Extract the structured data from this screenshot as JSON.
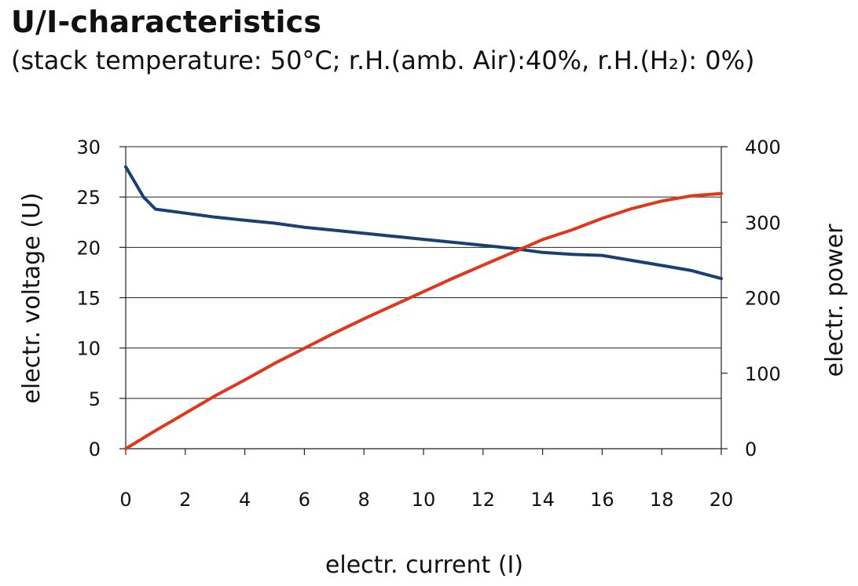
{
  "header": {
    "title": "U/I-characteristics",
    "subtitle": "(stack temperature: 50°C; r.H.(amb. Air):40%, r.H.(H₂): 0%)"
  },
  "chart_data": {
    "type": "line",
    "title": "U/I-characteristics",
    "subtitle": "(stack temperature: 50°C; r.H.(amb. Air):40%, r.H.(H₂): 0%)",
    "xlabel": "electr. current (I)",
    "ylabel": "electr. voltage (U)",
    "y2label": "electr. power",
    "xlim": [
      0,
      20
    ],
    "ylim": [
      0,
      30
    ],
    "y2lim": [
      0,
      400
    ],
    "xticks": [
      0,
      2,
      4,
      6,
      8,
      10,
      12,
      14,
      16,
      18,
      20
    ],
    "yticks": [
      0,
      5,
      10,
      15,
      20,
      25,
      30
    ],
    "y2ticks": [
      0,
      100,
      200,
      300,
      400
    ],
    "grid": "horizontal",
    "series": [
      {
        "axis": "left",
        "color": "#1a3f73",
        "x": [
          0,
          0.3,
          0.6,
          1.0,
          2,
          3,
          4,
          5,
          6,
          7,
          8,
          9,
          10,
          11,
          12,
          13,
          14,
          15,
          16,
          17,
          18,
          19,
          20
        ],
        "values": [
          28.0,
          26.5,
          25.0,
          23.8,
          23.4,
          23.0,
          22.7,
          22.4,
          22.0,
          21.7,
          21.4,
          21.1,
          20.8,
          20.5,
          20.2,
          19.9,
          19.5,
          19.3,
          19.2,
          18.7,
          18.2,
          17.7,
          16.9
        ]
      },
      {
        "axis": "right",
        "color": "#e2361b",
        "x": [
          0,
          1,
          2,
          3,
          4,
          5,
          6,
          7,
          8,
          9,
          10,
          11,
          12,
          13,
          14,
          15,
          16,
          17,
          18,
          19,
          20
        ],
        "values": [
          0,
          24,
          47,
          70,
          91,
          113,
          133,
          153,
          172,
          190,
          208,
          226,
          243,
          260,
          277,
          290,
          305,
          318,
          328,
          335,
          338
        ]
      }
    ]
  }
}
